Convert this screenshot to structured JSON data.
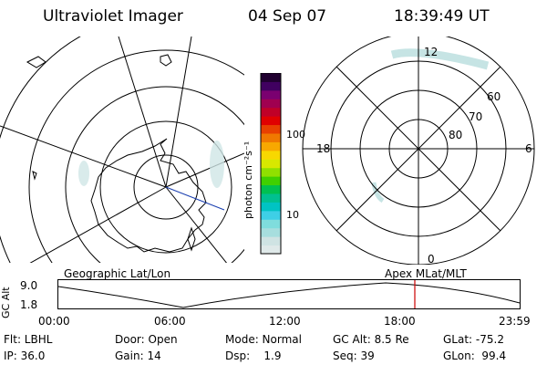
{
  "header": {
    "instrument": "Ultraviolet Imager",
    "date": "04 Sep 07",
    "time": "18:39:49 UT"
  },
  "colorbar": {
    "unit_label": "photon cm⁻²s⁻¹",
    "ticks": [
      "100",
      "10"
    ],
    "colors": [
      "#dfe9e9",
      "#cfe3e3",
      "#a7dede",
      "#7fdddd",
      "#3ecfe6",
      "#00c3c3",
      "#00c090",
      "#00c050",
      "#40d000",
      "#90e000",
      "#d8e800",
      "#f8d800",
      "#f8a800",
      "#f07800",
      "#e84000",
      "#e00000",
      "#c00028",
      "#a00050",
      "#7a0070",
      "#400060",
      "#200030"
    ]
  },
  "left_map": {
    "label": "Geographic Lat/Lon"
  },
  "right_map": {
    "label": "Apex  MLat/MLT",
    "mlt_labels": {
      "top": "12",
      "left": "18",
      "right": "6",
      "bottom": "0"
    },
    "lat_labels": [
      "60",
      "70",
      "80"
    ]
  },
  "altitude_plot": {
    "ylabel": "GC Alt",
    "y_ticks": [
      "9.0",
      "1.8"
    ],
    "x_ticks": [
      "00:00",
      "06:00",
      "12:00",
      "18:00",
      "23:59"
    ],
    "current_marker_color": "#cc0000"
  },
  "footer": {
    "row1": [
      "Flt: LBHL",
      "Door: Open",
      "Mode: Normal",
      "GC Alt: 8.5 Re",
      "GLat: -75.2"
    ],
    "row2": [
      "IP: 36.0",
      "Gain: 14",
      "Dsp:    1.9",
      "Seq: 39",
      "GLon:  99.4"
    ]
  }
}
